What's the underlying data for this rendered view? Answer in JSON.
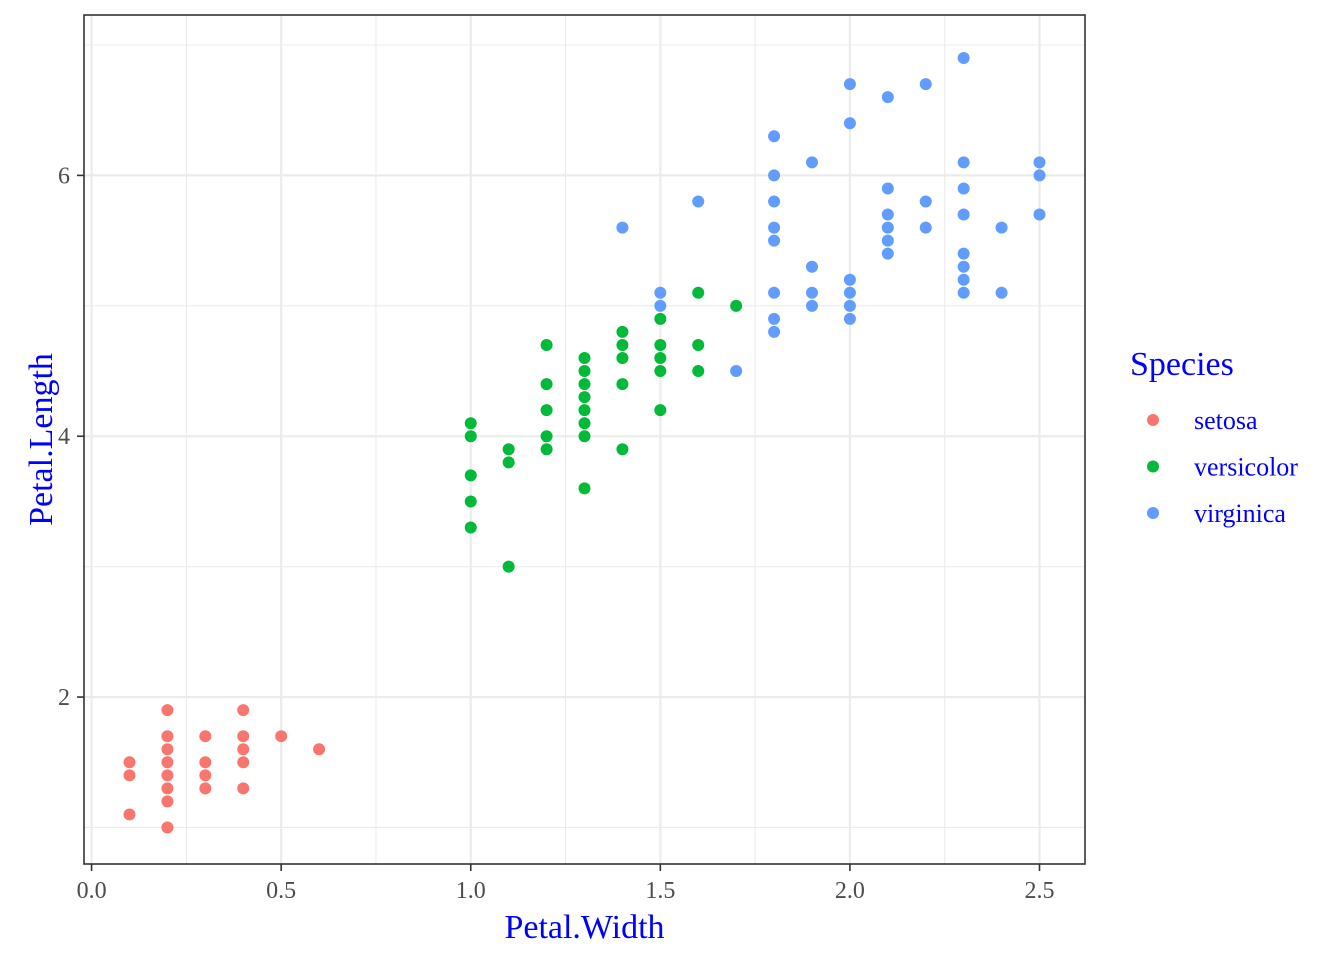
{
  "chart_data": {
    "type": "scatter",
    "xlabel": "Petal.Width",
    "ylabel": "Petal.Length",
    "xlim": [
      -0.02,
      2.62
    ],
    "ylim": [
      0.72,
      7.23
    ],
    "x_ticks": [
      0.0,
      0.5,
      1.0,
      1.5,
      2.0,
      2.5
    ],
    "x_tick_labels": [
      "0.0",
      "0.5",
      "1.0",
      "1.5",
      "2.0",
      "2.5"
    ],
    "y_ticks": [
      2,
      4,
      6
    ],
    "y_tick_labels": [
      "2",
      "4",
      "6"
    ],
    "grid": true,
    "legend": {
      "title": "Species",
      "placement": "right"
    },
    "series": [
      {
        "name": "setosa",
        "color": "#F8766D",
        "points": [
          [
            0.1,
            1.5
          ],
          [
            0.1,
            1.4
          ],
          [
            0.1,
            1.1
          ],
          [
            0.2,
            1.9
          ],
          [
            0.2,
            1.7
          ],
          [
            0.2,
            1.6
          ],
          [
            0.2,
            1.5
          ],
          [
            0.2,
            1.4
          ],
          [
            0.2,
            1.3
          ],
          [
            0.2,
            1.2
          ],
          [
            0.2,
            1.0
          ],
          [
            0.3,
            1.7
          ],
          [
            0.3,
            1.5
          ],
          [
            0.3,
            1.4
          ],
          [
            0.3,
            1.3
          ],
          [
            0.4,
            1.9
          ],
          [
            0.4,
            1.7
          ],
          [
            0.4,
            1.6
          ],
          [
            0.4,
            1.5
          ],
          [
            0.4,
            1.3
          ],
          [
            0.5,
            1.7
          ],
          [
            0.6,
            1.6
          ]
        ]
      },
      {
        "name": "versicolor",
        "color": "#00BA38",
        "points": [
          [
            1.0,
            4.1
          ],
          [
            1.0,
            4.0
          ],
          [
            1.0,
            3.7
          ],
          [
            1.0,
            3.5
          ],
          [
            1.0,
            3.3
          ],
          [
            1.1,
            3.9
          ],
          [
            1.1,
            3.8
          ],
          [
            1.1,
            3.0
          ],
          [
            1.2,
            4.7
          ],
          [
            1.2,
            4.4
          ],
          [
            1.2,
            4.2
          ],
          [
            1.2,
            4.0
          ],
          [
            1.2,
            3.9
          ],
          [
            1.3,
            4.6
          ],
          [
            1.3,
            4.5
          ],
          [
            1.3,
            4.4
          ],
          [
            1.3,
            4.3
          ],
          [
            1.3,
            4.2
          ],
          [
            1.3,
            4.1
          ],
          [
            1.3,
            4.0
          ],
          [
            1.3,
            3.6
          ],
          [
            1.4,
            4.8
          ],
          [
            1.4,
            4.7
          ],
          [
            1.4,
            4.6
          ],
          [
            1.4,
            4.4
          ],
          [
            1.4,
            3.9
          ],
          [
            1.5,
            4.9
          ],
          [
            1.5,
            4.7
          ],
          [
            1.5,
            4.6
          ],
          [
            1.5,
            4.5
          ],
          [
            1.5,
            4.2
          ],
          [
            1.6,
            5.1
          ],
          [
            1.6,
            4.7
          ],
          [
            1.6,
            4.5
          ],
          [
            1.7,
            5.0
          ]
        ]
      },
      {
        "name": "virginica",
        "color": "#619CFF",
        "points": [
          [
            1.4,
            5.6
          ],
          [
            1.5,
            5.1
          ],
          [
            1.5,
            5.0
          ],
          [
            1.6,
            5.8
          ],
          [
            1.7,
            4.5
          ],
          [
            1.8,
            6.3
          ],
          [
            1.8,
            6.0
          ],
          [
            1.8,
            5.8
          ],
          [
            1.8,
            5.6
          ],
          [
            1.8,
            5.5
          ],
          [
            1.8,
            5.1
          ],
          [
            1.8,
            4.9
          ],
          [
            1.8,
            4.8
          ],
          [
            1.9,
            6.1
          ],
          [
            1.9,
            5.3
          ],
          [
            1.9,
            5.1
          ],
          [
            1.9,
            5.0
          ],
          [
            2.0,
            6.7
          ],
          [
            2.0,
            6.4
          ],
          [
            2.0,
            5.2
          ],
          [
            2.0,
            5.1
          ],
          [
            2.0,
            5.0
          ],
          [
            2.0,
            4.9
          ],
          [
            2.1,
            6.6
          ],
          [
            2.1,
            5.9
          ],
          [
            2.1,
            5.7
          ],
          [
            2.1,
            5.6
          ],
          [
            2.1,
            5.5
          ],
          [
            2.1,
            5.4
          ],
          [
            2.2,
            6.7
          ],
          [
            2.2,
            5.8
          ],
          [
            2.2,
            5.6
          ],
          [
            2.3,
            6.9
          ],
          [
            2.3,
            6.1
          ],
          [
            2.3,
            5.9
          ],
          [
            2.3,
            5.7
          ],
          [
            2.3,
            5.4
          ],
          [
            2.3,
            5.3
          ],
          [
            2.3,
            5.2
          ],
          [
            2.3,
            5.1
          ],
          [
            2.4,
            5.6
          ],
          [
            2.4,
            5.1
          ],
          [
            2.5,
            6.1
          ],
          [
            2.5,
            6.0
          ],
          [
            2.5,
            5.7
          ]
        ]
      }
    ]
  }
}
